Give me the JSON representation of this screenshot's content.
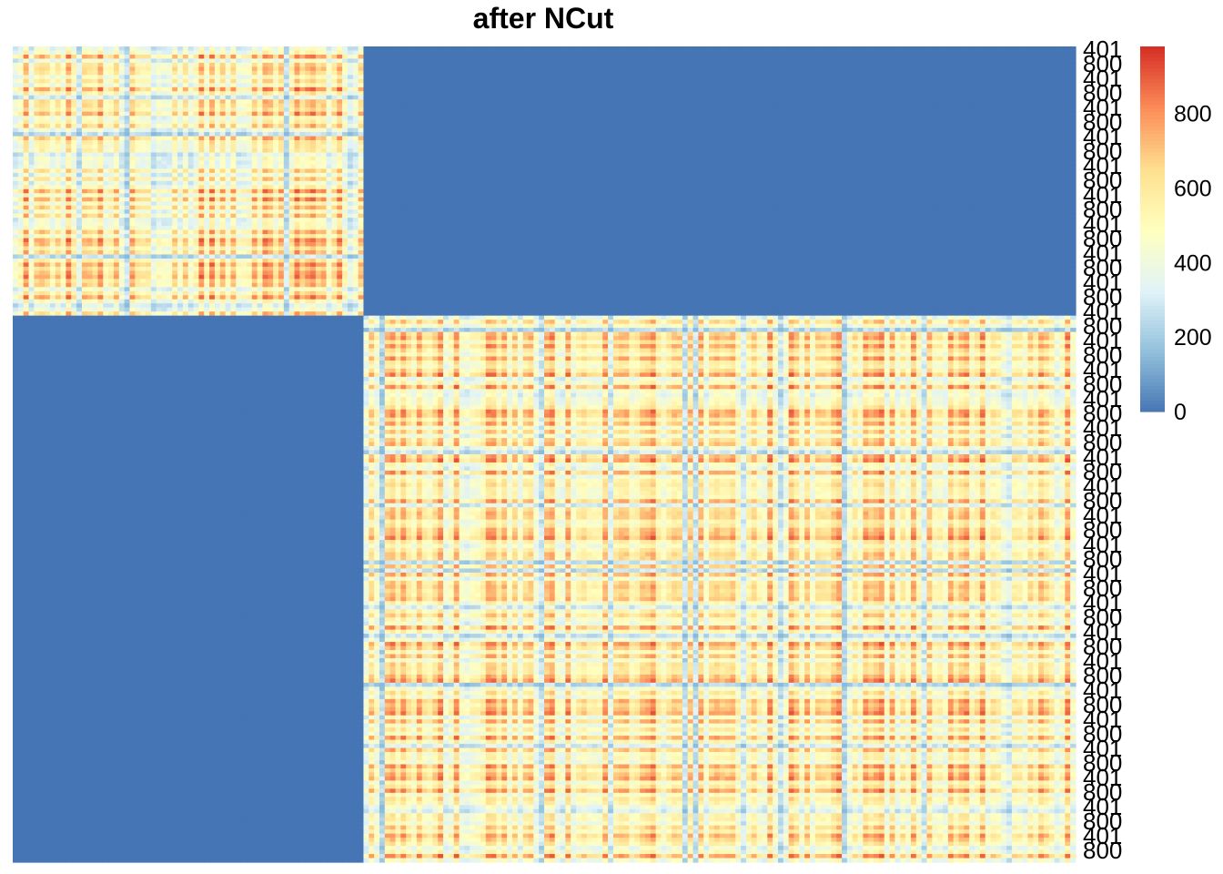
{
  "chart_data": {
    "type": "heatmap",
    "title": "after NCut",
    "n": 800,
    "cluster_sizes": [
      263,
      537
    ],
    "row_labels_visible": [
      "401",
      "800"
    ],
    "colorbar": {
      "ticks": [
        0,
        200,
        400,
        600,
        800
      ],
      "range": [
        0,
        980
      ],
      "palette": [
        "#4575B4",
        "#91BFDB",
        "#E0F3F8",
        "#FFFFBF",
        "#FEE090",
        "#FC8D59",
        "#D73027"
      ]
    },
    "block_values": {
      "within_cluster_range": [
        150,
        980
      ],
      "within_cluster_typical": 620,
      "between_clusters": 0
    }
  }
}
